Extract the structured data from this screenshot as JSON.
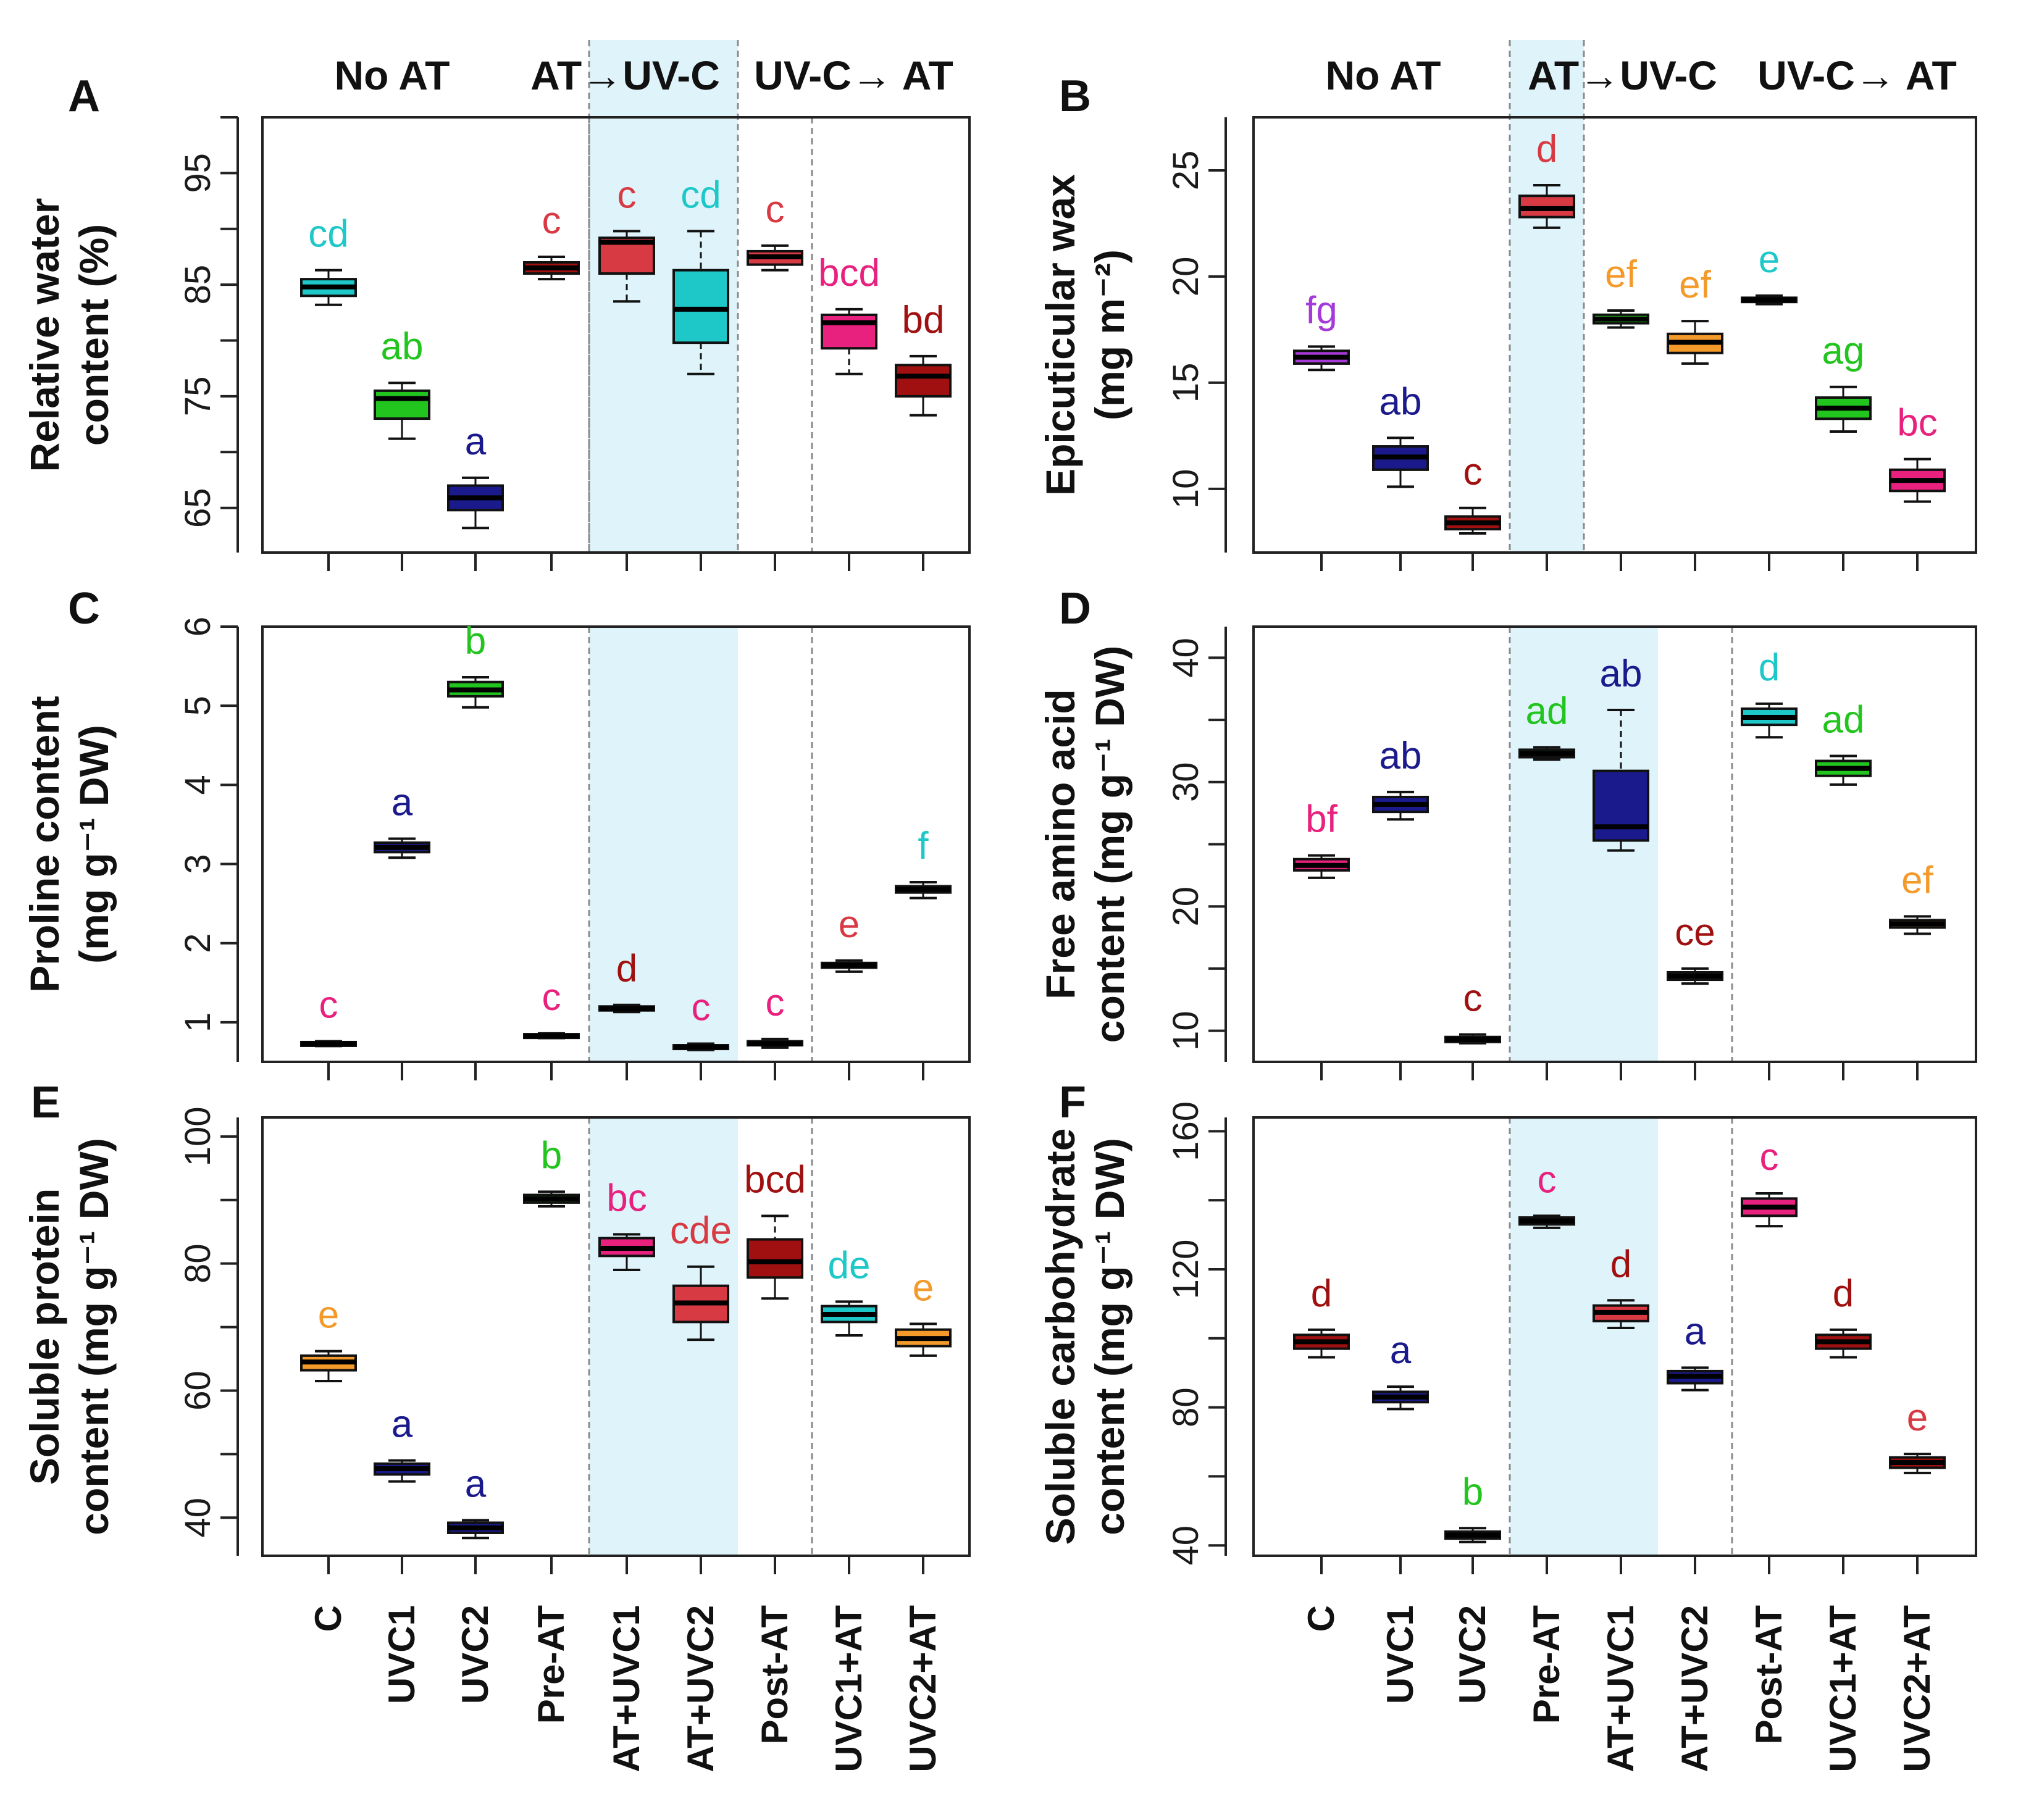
{
  "figure": {
    "group_headers": [
      "No AT",
      "AT→UV-C",
      "UV-C→ AT"
    ],
    "x_categories": [
      "C",
      "UVC1",
      "UVC2",
      "Pre-AT",
      "AT+UVC1",
      "AT+UVC2",
      "Post-AT",
      "UVC1+AT",
      "UVC2+AT"
    ],
    "colors": {
      "cyan": "#1ec8c8",
      "green": "#22c41e",
      "navy": "#1a1a8c",
      "red": "#d83a44",
      "pink": "#e8217e",
      "darkred": "#a01010",
      "orange": "#f39a2a",
      "purple": "#a63ad8",
      "shade": "#dff4fa",
      "divider": "#8a8a8a"
    }
  },
  "chart_data": [
    {
      "panel": "A",
      "type": "box",
      "xlabel": "",
      "ylabel_lines": [
        "Relative water",
        "content (%)"
      ],
      "ylim": [
        61,
        100
      ],
      "yticks": [
        65,
        75,
        85,
        95
      ],
      "extra_tick_marks": [
        70,
        80,
        90,
        100
      ],
      "shade": [
        4,
        6
      ],
      "dividers": [
        4,
        7
      ],
      "show_headers": true,
      "show_x_labels": false,
      "boxes": [
        {
          "q1": 84.0,
          "median": 84.8,
          "q3": 85.5,
          "min": 83.2,
          "max": 86.3,
          "color": "cyan",
          "label": "cd",
          "label_color": "cyan"
        },
        {
          "q1": 73.0,
          "median": 74.8,
          "q3": 75.5,
          "min": 71.2,
          "max": 76.2,
          "color": "green",
          "label": "ab",
          "label_color": "green"
        },
        {
          "q1": 64.8,
          "median": 65.9,
          "q3": 67.0,
          "min": 63.2,
          "max": 67.7,
          "color": "navy",
          "label": "a",
          "label_color": "navy"
        },
        {
          "q1": 86.0,
          "median": 86.5,
          "q3": 87.0,
          "min": 85.5,
          "max": 87.5,
          "color": "darkred",
          "label": "c",
          "label_color": "red"
        },
        {
          "q1": 86.0,
          "median": 88.8,
          "q3": 89.2,
          "min": 83.5,
          "max": 89.8,
          "color": "red",
          "label": "c",
          "label_color": "red"
        },
        {
          "q1": 79.8,
          "median": 82.8,
          "q3": 86.3,
          "min": 77.0,
          "max": 89.8,
          "color": "cyan",
          "label": "cd",
          "label_color": "cyan"
        },
        {
          "q1": 86.8,
          "median": 87.5,
          "q3": 88.0,
          "min": 86.3,
          "max": 88.5,
          "color": "red",
          "label": "c",
          "label_color": "red"
        },
        {
          "q1": 79.3,
          "median": 81.6,
          "q3": 82.3,
          "min": 77.0,
          "max": 82.8,
          "color": "pink",
          "label": "bcd",
          "label_color": "pink"
        },
        {
          "q1": 75.0,
          "median": 76.8,
          "q3": 77.8,
          "min": 73.3,
          "max": 78.6,
          "color": "darkred",
          "label": "bd",
          "label_color": "darkred"
        }
      ]
    },
    {
      "panel": "B",
      "type": "box",
      "xlabel": "",
      "ylabel_lines": [
        "Epicuticular wax",
        "(mg m⁻²)"
      ],
      "ylim": [
        7.0,
        27.5
      ],
      "yticks": [
        10,
        15,
        20,
        25
      ],
      "extra_tick_marks": [],
      "shade": [
        3,
        4
      ],
      "dividers": [],
      "show_headers": true,
      "show_x_labels": false,
      "boxes": [
        {
          "q1": 15.9,
          "median": 16.2,
          "q3": 16.5,
          "min": 15.6,
          "max": 16.7,
          "color": "purple",
          "label": "fg",
          "label_color": "purple"
        },
        {
          "q1": 10.9,
          "median": 11.5,
          "q3": 12.0,
          "min": 10.1,
          "max": 12.4,
          "color": "navy",
          "label": "ab",
          "label_color": "navy"
        },
        {
          "q1": 8.1,
          "median": 8.4,
          "q3": 8.7,
          "min": 7.9,
          "max": 9.1,
          "color": "darkred",
          "label": "c",
          "label_color": "darkred"
        },
        {
          "q1": 22.8,
          "median": 23.2,
          "q3": 23.8,
          "min": 22.3,
          "max": 24.3,
          "color": "red",
          "label": "d",
          "label_color": "red"
        },
        {
          "q1": 17.8,
          "median": 18.0,
          "q3": 18.2,
          "min": 17.6,
          "max": 18.4,
          "color": "green",
          "label": "ef",
          "label_color": "orange"
        },
        {
          "q1": 16.4,
          "median": 16.9,
          "q3": 17.3,
          "min": 15.9,
          "max": 17.9,
          "color": "orange",
          "label": "ef",
          "label_color": "orange"
        },
        {
          "q1": 18.8,
          "median": 18.9,
          "q3": 19.0,
          "min": 18.7,
          "max": 19.1,
          "color": "cyan",
          "label": "e",
          "label_color": "cyan"
        },
        {
          "q1": 13.3,
          "median": 13.8,
          "q3": 14.3,
          "min": 12.7,
          "max": 14.8,
          "color": "green",
          "label": "ag",
          "label_color": "green"
        },
        {
          "q1": 9.9,
          "median": 10.4,
          "q3": 10.9,
          "min": 9.4,
          "max": 11.4,
          "color": "pink",
          "label": "bc",
          "label_color": "pink"
        }
      ]
    },
    {
      "panel": "C",
      "type": "box",
      "xlabel": "",
      "ylabel_lines": [
        "Proline content",
        "(mg g⁻¹ DW)"
      ],
      "ylim": [
        0.5,
        6.0
      ],
      "yticks": [
        1,
        2,
        3,
        4,
        5,
        6
      ],
      "extra_tick_marks": [],
      "shade": [
        4,
        6
      ],
      "dividers": [
        4,
        7
      ],
      "show_headers": false,
      "show_x_labels": false,
      "boxes": [
        {
          "q1": 0.71,
          "median": 0.73,
          "q3": 0.75,
          "min": 0.7,
          "max": 0.76,
          "color": "pink",
          "label": "c",
          "label_color": "pink"
        },
        {
          "q1": 3.15,
          "median": 3.21,
          "q3": 3.27,
          "min": 3.08,
          "max": 3.32,
          "color": "navy",
          "label": "a",
          "label_color": "navy"
        },
        {
          "q1": 5.12,
          "median": 5.2,
          "q3": 5.3,
          "min": 4.98,
          "max": 5.36,
          "color": "green",
          "label": "b",
          "label_color": "green"
        },
        {
          "q1": 0.81,
          "median": 0.83,
          "q3": 0.85,
          "min": 0.8,
          "max": 0.86,
          "color": "pink",
          "label": "c",
          "label_color": "pink"
        },
        {
          "q1": 1.15,
          "median": 1.17,
          "q3": 1.2,
          "min": 1.13,
          "max": 1.22,
          "color": "darkred",
          "label": "d",
          "label_color": "darkred"
        },
        {
          "q1": 0.67,
          "median": 0.69,
          "q3": 0.71,
          "min": 0.65,
          "max": 0.73,
          "color": "pink",
          "label": "c",
          "label_color": "pink"
        },
        {
          "q1": 0.71,
          "median": 0.73,
          "q3": 0.76,
          "min": 0.68,
          "max": 0.79,
          "color": "pink",
          "label": "c",
          "label_color": "pink"
        },
        {
          "q1": 1.69,
          "median": 1.72,
          "q3": 1.75,
          "min": 1.64,
          "max": 1.78,
          "color": "pink",
          "label": "e",
          "label_color": "red"
        },
        {
          "q1": 2.64,
          "median": 2.68,
          "q3": 2.72,
          "min": 2.57,
          "max": 2.77,
          "color": "cyan",
          "label": "f",
          "label_color": "cyan"
        }
      ]
    },
    {
      "panel": "D",
      "type": "box",
      "xlabel": "",
      "ylabel_lines": [
        "Free amino acid",
        "content (mg g⁻¹ DW)"
      ],
      "ylim": [
        7.5,
        42.5
      ],
      "yticks": [
        10,
        20,
        30,
        40
      ],
      "extra_tick_marks": [
        15,
        25,
        35
      ],
      "shade": [
        3,
        5
      ],
      "dividers": [
        3,
        6
      ],
      "show_headers": false,
      "show_x_labels": false,
      "boxes": [
        {
          "q1": 22.9,
          "median": 23.3,
          "q3": 23.8,
          "min": 22.3,
          "max": 24.1,
          "color": "pink",
          "label": "bf",
          "label_color": "pink"
        },
        {
          "q1": 27.6,
          "median": 28.2,
          "q3": 28.8,
          "min": 27.0,
          "max": 29.2,
          "color": "navy",
          "label": "ab",
          "label_color": "navy"
        },
        {
          "q1": 9.1,
          "median": 9.3,
          "q3": 9.5,
          "min": 9.0,
          "max": 9.7,
          "color": "darkred",
          "label": "c",
          "label_color": "darkred"
        },
        {
          "q1": 32.0,
          "median": 32.3,
          "q3": 32.6,
          "min": 31.8,
          "max": 32.8,
          "color": "green",
          "label": "ad",
          "label_color": "green"
        },
        {
          "q1": 25.3,
          "median": 26.4,
          "q3": 30.9,
          "min": 24.5,
          "max": 35.8,
          "color": "navy",
          "label": "ab",
          "label_color": "navy"
        },
        {
          "q1": 14.1,
          "median": 14.4,
          "q3": 14.7,
          "min": 13.8,
          "max": 15.0,
          "color": "pink",
          "label": "ce",
          "label_color": "darkred"
        },
        {
          "q1": 34.6,
          "median": 35.2,
          "q3": 35.9,
          "min": 33.6,
          "max": 36.3,
          "color": "cyan",
          "label": "d",
          "label_color": "cyan"
        },
        {
          "q1": 30.5,
          "median": 31.1,
          "q3": 31.7,
          "min": 29.8,
          "max": 32.1,
          "color": "green",
          "label": "ad",
          "label_color": "green"
        },
        {
          "q1": 18.3,
          "median": 18.6,
          "q3": 18.9,
          "min": 17.8,
          "max": 19.2,
          "color": "orange",
          "label": "ef",
          "label_color": "orange"
        }
      ]
    },
    {
      "panel": "E",
      "type": "box",
      "xlabel": "",
      "ylabel_lines": [
        "Soluble protein",
        "content (mg g⁻¹ DW)"
      ],
      "ylim": [
        34,
        103
      ],
      "yticks": [
        40,
        60,
        80,
        100
      ],
      "extra_tick_marks": [
        50,
        70,
        90
      ],
      "shade": [
        4,
        6
      ],
      "dividers": [
        4,
        7
      ],
      "show_headers": false,
      "show_x_labels": true,
      "boxes": [
        {
          "q1": 63.2,
          "median": 64.5,
          "q3": 65.5,
          "min": 61.5,
          "max": 66.2,
          "color": "orange",
          "label": "e",
          "label_color": "orange"
        },
        {
          "q1": 46.8,
          "median": 47.7,
          "q3": 48.5,
          "min": 45.7,
          "max": 49.0,
          "color": "navy",
          "label": "a",
          "label_color": "navy"
        },
        {
          "q1": 37.6,
          "median": 38.4,
          "q3": 39.2,
          "min": 36.8,
          "max": 39.6,
          "color": "navy",
          "label": "a",
          "label_color": "navy"
        },
        {
          "q1": 89.6,
          "median": 90.2,
          "q3": 90.8,
          "min": 89.0,
          "max": 91.3,
          "color": "green",
          "label": "b",
          "label_color": "green"
        },
        {
          "q1": 81.2,
          "median": 82.4,
          "q3": 84.0,
          "min": 79.0,
          "max": 84.6,
          "color": "pink",
          "label": "bc",
          "label_color": "pink"
        },
        {
          "q1": 70.8,
          "median": 73.8,
          "q3": 76.5,
          "min": 68.0,
          "max": 79.5,
          "color": "red",
          "label": "cde",
          "label_color": "red"
        },
        {
          "q1": 77.8,
          "median": 80.3,
          "q3": 83.8,
          "min": 74.5,
          "max": 87.5,
          "color": "darkred",
          "label": "bcd",
          "label_color": "darkred"
        },
        {
          "q1": 70.8,
          "median": 72.0,
          "q3": 73.3,
          "min": 68.7,
          "max": 74.0,
          "color": "cyan",
          "label": "de",
          "label_color": "cyan"
        },
        {
          "q1": 67.0,
          "median": 68.2,
          "q3": 69.6,
          "min": 65.5,
          "max": 70.5,
          "color": "orange",
          "label": "e",
          "label_color": "orange"
        }
      ]
    },
    {
      "panel": "F",
      "type": "box",
      "xlabel": "",
      "ylabel_lines": [
        "Soluble carbohydrate",
        "content (mg g⁻¹ DW)"
      ],
      "ylim": [
        37,
        164
      ],
      "yticks": [
        40,
        80,
        120,
        160
      ],
      "extra_tick_marks": [
        60,
        100,
        140
      ],
      "shade": [
        3,
        5
      ],
      "dividers": [
        3,
        6
      ],
      "show_headers": false,
      "show_x_labels": true,
      "boxes": [
        {
          "q1": 97.0,
          "median": 99.0,
          "q3": 101.0,
          "min": 94.5,
          "max": 102.5,
          "color": "darkred",
          "label": "d",
          "label_color": "darkred"
        },
        {
          "q1": 81.5,
          "median": 83.0,
          "q3": 84.5,
          "min": 79.5,
          "max": 86.0,
          "color": "navy",
          "label": "a",
          "label_color": "navy"
        },
        {
          "q1": 42.0,
          "median": 43.0,
          "q3": 44.0,
          "min": 41.0,
          "max": 45.0,
          "color": "navy",
          "label": "b",
          "label_color": "green"
        },
        {
          "q1": 133.0,
          "median": 134.0,
          "q3": 135.0,
          "min": 132.0,
          "max": 135.5,
          "color": "cyan",
          "label": "c",
          "label_color": "pink"
        },
        {
          "q1": 105.0,
          "median": 107.5,
          "q3": 109.5,
          "min": 103.0,
          "max": 111.0,
          "color": "red",
          "label": "d",
          "label_color": "darkred"
        },
        {
          "q1": 87.0,
          "median": 89.0,
          "q3": 90.5,
          "min": 85.0,
          "max": 91.5,
          "color": "navy",
          "label": "a",
          "label_color": "navy"
        },
        {
          "q1": 135.5,
          "median": 138.0,
          "q3": 140.5,
          "min": 132.5,
          "max": 142.0,
          "color": "pink",
          "label": "c",
          "label_color": "pink"
        },
        {
          "q1": 97.0,
          "median": 99.0,
          "q3": 101.0,
          "min": 94.5,
          "max": 102.5,
          "color": "darkred",
          "label": "d",
          "label_color": "darkred"
        },
        {
          "q1": 62.5,
          "median": 64.0,
          "q3": 65.5,
          "min": 61.0,
          "max": 66.5,
          "color": "darkred",
          "label": "e",
          "label_color": "red"
        }
      ]
    }
  ]
}
